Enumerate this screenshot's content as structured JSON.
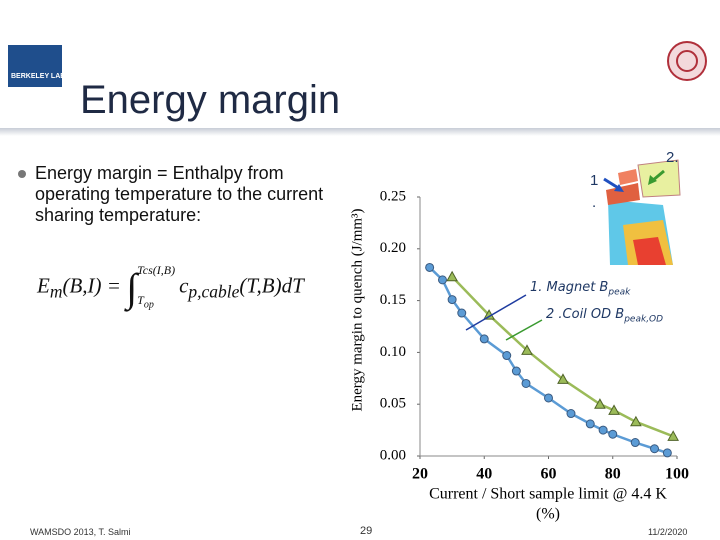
{
  "header": {
    "logo": "BERKELEY LAB",
    "title": "Energy margin"
  },
  "bullet": "Energy margin = Enthalpy from operating temperature to the current sharing temperature:",
  "equation": {
    "lhs": "E",
    "lhs_sub": "m",
    "lhs_args": "(B,I) =",
    "upper": "Tcs(I,B)",
    "lower": "T",
    "lower_sub": "op",
    "integrand": "c",
    "integrand_sub": "p,cable",
    "rest": "(T,B)dT"
  },
  "coil_labels": [
    "1",
    ".",
    "2."
  ],
  "annotations": [
    {
      "text": "1. Magnet B",
      "sub": "peak"
    },
    {
      "text": "2 .Coil OD B",
      "sub": "peak,OD"
    }
  ],
  "footer": {
    "left": "WAMSDO 2013, T. Salmi",
    "center": "29",
    "right": "11/2/2020"
  },
  "chart_data": {
    "type": "line",
    "xlabel": [
      "Current / Short sample limit @ 4.4 K",
      "(%)"
    ],
    "ylabel": "Energy margin to quench (J/mm³)",
    "xlim": [
      20,
      100
    ],
    "xticks": [
      20,
      40,
      60,
      80,
      100
    ],
    "ylim": [
      0,
      0.25
    ],
    "yticks": [
      {
        "value": 0,
        "label": "0.00"
      },
      0.05,
      {
        "value": 0.1,
        "label": "0.10"
      },
      0.15,
      {
        "value": 0.2,
        "label": "0.20"
      },
      0.25
    ],
    "series": [
      {
        "name": "1. Magnet Bpeak",
        "color": "#5b9bd5",
        "marker": "circle",
        "x": [
          23,
          27,
          30,
          33,
          40,
          47,
          50,
          53,
          60,
          67,
          73,
          77,
          80,
          87,
          93,
          97
        ],
        "values": [
          0.182,
          0.17,
          0.151,
          0.138,
          0.113,
          0.097,
          0.082,
          0.07,
          0.056,
          0.041,
          0.031,
          0.025,
          0.021,
          0.013,
          0.007,
          0.003
        ]
      },
      {
        "name": "2 .Coil OD Bpeak,OD",
        "color": "#9bbb59",
        "marker": "triangle",
        "x": [
          30,
          41.5,
          53.3,
          64.5,
          76,
          80.4,
          87.2,
          98.8
        ],
        "values": [
          0.173,
          0.136,
          0.102,
          0.074,
          0.05,
          0.044,
          0.033,
          0.019
        ]
      }
    ]
  }
}
